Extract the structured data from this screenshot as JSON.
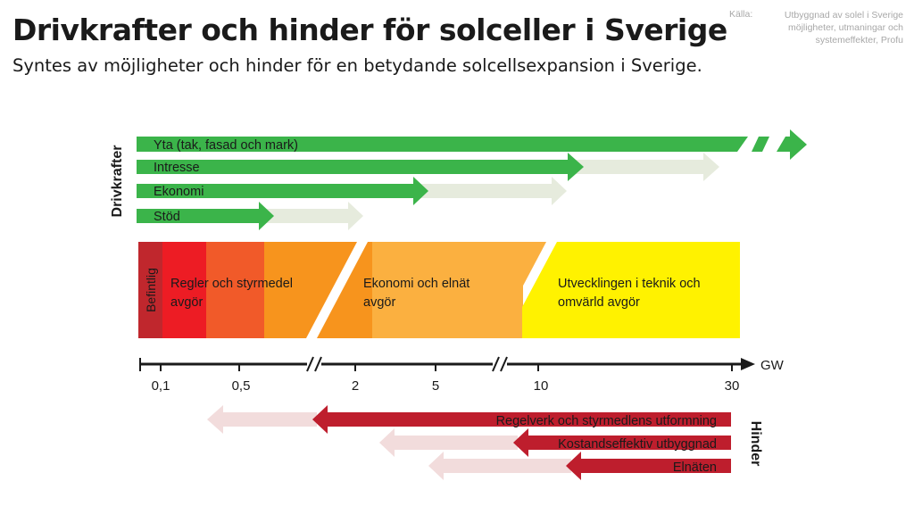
{
  "title": "Drivkrafter och hinder för solceller i Sverige",
  "subtitle": "Syntes av möjligheter och hinder för en betydande solcellsexpansion i Sverige.",
  "source": {
    "label": "Källa:",
    "text": "Utbyggnad av solel i Sverige möjligheter, utmaningar och systemeffekter, Profu"
  },
  "drivkrafter": {
    "label": "Drivkrafter",
    "items": [
      {
        "label": "Yta (tak, fasad och mark)"
      },
      {
        "label": "Intresse"
      },
      {
        "label": "Ekonomi"
      },
      {
        "label": "Stöd"
      }
    ]
  },
  "stages": [
    {
      "label": "Befintlig",
      "color": "#c0272d"
    },
    {
      "label": "Regler och styrmedel avgör",
      "color": "#ec2127"
    },
    {
      "label": "Ekonomi och elnät avgör",
      "color": "#f7941d"
    },
    {
      "label": "Utvecklingen i teknik och omvärld avgör",
      "color": "#fff200"
    }
  ],
  "axis": {
    "unit": "GW",
    "ticks": [
      "0,1",
      "0,5",
      "2",
      "5",
      "10",
      "30"
    ]
  },
  "hinder": {
    "label": "Hinder",
    "items": [
      {
        "label": "Regelverk och styrmedlens utformning"
      },
      {
        "label": "Kostandseffektiv utbyggnad"
      },
      {
        "label": "Elnäten"
      }
    ]
  },
  "colors": {
    "green": "#3bb44a",
    "green_light": "#e6ebdd",
    "red": "#be1e2d",
    "red_light": "#f2dcdc"
  }
}
